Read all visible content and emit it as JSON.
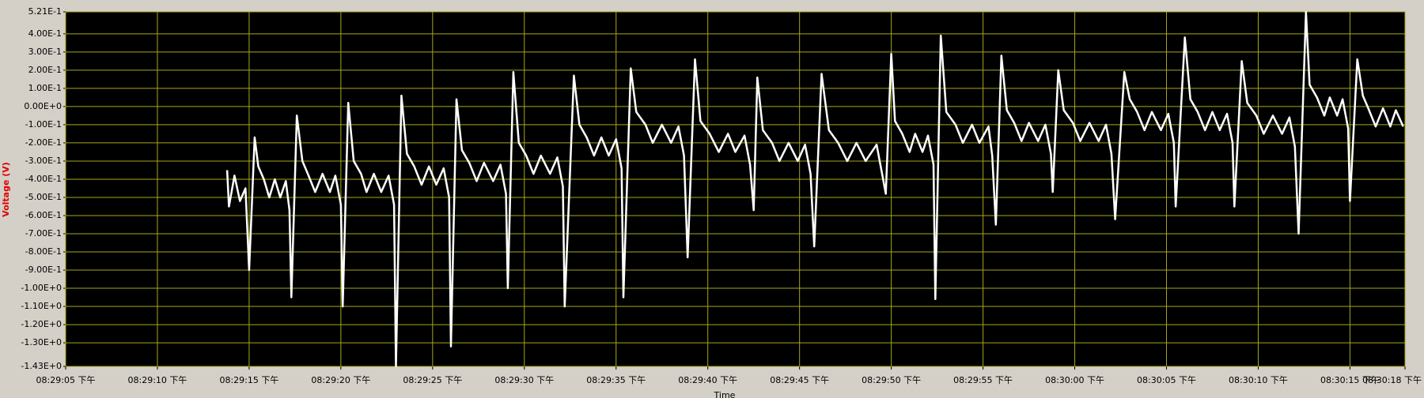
{
  "chart_data": {
    "type": "line",
    "xlabel": "Time",
    "ylabel": "Voltage (V)",
    "xlim": [
      73745,
      73818
    ],
    "xticks": [
      {
        "value": 73745,
        "label": "08:29:05 下午"
      },
      {
        "value": 73750,
        "label": "08:29:10 下午"
      },
      {
        "value": 73755,
        "label": "08:29:15 下午"
      },
      {
        "value": 73760,
        "label": "08:29:20 下午"
      },
      {
        "value": 73765,
        "label": "08:29:25 下午"
      },
      {
        "value": 73770,
        "label": "08:29:30 下午"
      },
      {
        "value": 73775,
        "label": "08:29:35 下午"
      },
      {
        "value": 73780,
        "label": "08:29:40 下午"
      },
      {
        "value": 73785,
        "label": "08:29:45 下午"
      },
      {
        "value": 73790,
        "label": "08:29:50 下午"
      },
      {
        "value": 73795,
        "label": "08:29:55 下午"
      },
      {
        "value": 73800,
        "label": "08:30:00 下午"
      },
      {
        "value": 73805,
        "label": "08:30:05 下午"
      },
      {
        "value": 73810,
        "label": "08:30:10 下午"
      },
      {
        "value": 73815,
        "label": "08:30:15 下午"
      },
      {
        "value": 73818,
        "label": "08:30:18 下午"
      }
    ],
    "ylim": [
      -1.43,
      0.521
    ],
    "yticks": [
      {
        "value": 0.521,
        "label": "5.21E-1"
      },
      {
        "value": 0.4,
        "label": "4.00E-1"
      },
      {
        "value": 0.3,
        "label": "3.00E-1"
      },
      {
        "value": 0.2,
        "label": "2.00E-1"
      },
      {
        "value": 0.1,
        "label": "1.00E-1"
      },
      {
        "value": 0,
        "label": "0.00E+0"
      },
      {
        "value": -0.1,
        "label": "-1.00E-1"
      },
      {
        "value": -0.2,
        "label": "-2.00E-1"
      },
      {
        "value": -0.3,
        "label": "-3.00E-1"
      },
      {
        "value": -0.4,
        "label": "-4.00E-1"
      },
      {
        "value": -0.5,
        "label": "-5.00E-1"
      },
      {
        "value": -0.6,
        "label": "-6.00E-1"
      },
      {
        "value": -0.7,
        "label": "-7.00E-1"
      },
      {
        "value": -0.8,
        "label": "-8.00E-1"
      },
      {
        "value": -0.9,
        "label": "-9.00E-1"
      },
      {
        "value": -1.0,
        "label": "-1.00E+0"
      },
      {
        "value": -1.1,
        "label": "-1.10E+0"
      },
      {
        "value": -1.2,
        "label": "-1.20E+0"
      },
      {
        "value": -1.3,
        "label": "-1.30E+0"
      },
      {
        "value": -1.43,
        "label": "-1.43E+0"
      }
    ],
    "grid": true,
    "grid_color": "#a6a61e",
    "plot_background": "#000000",
    "x": [
      73753.8,
      73753.9,
      73754.2,
      73754.5,
      73754.8,
      73755.0,
      73755.3,
      73755.5,
      73755.8,
      73756.1,
      73756.4,
      73756.7,
      73757.0,
      73757.2,
      73757.3,
      73757.6,
      73757.9,
      73758.2,
      73758.6,
      73759.0,
      73759.4,
      73759.7,
      73760.0,
      73760.1,
      73760.4,
      73760.7,
      73761.1,
      73761.4,
      73761.8,
      73762.2,
      73762.6,
      73762.9,
      73763.0,
      73763.3,
      73763.6,
      73764.0,
      73764.4,
      73764.8,
      73765.2,
      73765.6,
      73765.9,
      73766.0,
      73766.3,
      73766.6,
      73767.0,
      73767.4,
      73767.8,
      73768.3,
      73768.7,
      73769.0,
      73769.1,
      73769.4,
      73769.7,
      73770.1,
      73770.5,
      73770.9,
      73771.4,
      73771.8,
      73772.1,
      73772.2,
      73772.7,
      73773.0,
      73773.4,
      73773.8,
      73774.2,
      73774.6,
      73775.0,
      73775.3,
      73775.4,
      73775.8,
      73776.1,
      73776.6,
      73777.0,
      73777.5,
      73778.0,
      73778.4,
      73778.7,
      73778.9,
      73779.3,
      73779.6,
      73780.1,
      73780.6,
      73781.1,
      73781.5,
      73782.0,
      73782.3,
      73782.5,
      73782.7,
      73783.0,
      73783.5,
      73783.9,
      73784.4,
      73784.9,
      73785.3,
      73785.6,
      73785.8,
      73786.2,
      73786.6,
      73787.1,
      73787.6,
      73788.1,
      73788.6,
      73789.2,
      73789.5,
      73789.7,
      73790.0,
      73790.2,
      73790.6,
      73791.0,
      73791.3,
      73791.7,
      73792.0,
      73792.3,
      73792.4,
      73792.7,
      73793.0,
      73793.5,
      73793.9,
      73794.4,
      73794.8,
      73795.3,
      73795.5,
      73795.7,
      73796.0,
      73796.3,
      73796.7,
      73797.1,
      73797.5,
      73798.0,
      73798.4,
      73798.7,
      73798.8,
      73799.1,
      73799.4,
      73799.9,
      73800.3,
      73800.8,
      73801.3,
      73801.7,
      73802.0,
      73802.2,
      73802.7,
      73803.0,
      73803.4,
      73803.8,
      73804.2,
      73804.7,
      73805.1,
      73805.4,
      73805.5,
      73806.0,
      73806.3,
      73806.7,
      73807.1,
      73807.5,
      73807.9,
      73808.3,
      73808.6,
      73808.7,
      73809.1,
      73809.4,
      73809.9,
      73810.3,
      73810.8,
      73811.3,
      73811.7,
      73812.0,
      73812.2,
      73812.6,
      73812.8,
      73813.2,
      73813.6,
      73813.9,
      73814.3,
      73814.6,
      73814.9,
      73815.0,
      73815.4,
      73815.7,
      73816.0,
      73816.4,
      73816.8,
      73817.2,
      73817.5,
      73817.9
    ],
    "series": [
      {
        "color": "#ffffff",
        "values": [
          -0.35,
          -0.55,
          -0.38,
          -0.52,
          -0.45,
          -0.9,
          -0.17,
          -0.33,
          -0.4,
          -0.5,
          -0.4,
          -0.5,
          -0.41,
          -0.57,
          -1.05,
          -0.05,
          -0.3,
          -0.37,
          -0.47,
          -0.37,
          -0.47,
          -0.38,
          -0.54,
          -1.1,
          0.02,
          -0.3,
          -0.37,
          -0.47,
          -0.37,
          -0.47,
          -0.38,
          -0.54,
          -1.43,
          0.06,
          -0.26,
          -0.33,
          -0.43,
          -0.33,
          -0.43,
          -0.34,
          -0.5,
          -1.32,
          0.04,
          -0.24,
          -0.31,
          -0.41,
          -0.31,
          -0.41,
          -0.32,
          -0.48,
          -1.0,
          0.19,
          -0.2,
          -0.27,
          -0.37,
          -0.27,
          -0.37,
          -0.28,
          -0.44,
          -1.1,
          0.17,
          -0.1,
          -0.17,
          -0.27,
          -0.17,
          -0.27,
          -0.18,
          -0.34,
          -1.05,
          0.21,
          -0.03,
          -0.1,
          -0.2,
          -0.1,
          -0.2,
          -0.11,
          -0.27,
          -0.83,
          0.26,
          -0.08,
          -0.15,
          -0.25,
          -0.15,
          -0.25,
          -0.16,
          -0.32,
          -0.57,
          0.16,
          -0.13,
          -0.2,
          -0.3,
          -0.2,
          -0.3,
          -0.21,
          -0.37,
          -0.77,
          0.18,
          -0.13,
          -0.2,
          -0.3,
          -0.2,
          -0.3,
          -0.21,
          -0.37,
          -0.48,
          0.29,
          -0.08,
          -0.15,
          -0.25,
          -0.15,
          -0.25,
          -0.16,
          -0.32,
          -1.06,
          0.39,
          -0.03,
          -0.1,
          -0.2,
          -0.1,
          -0.2,
          -0.11,
          -0.27,
          -0.65,
          0.28,
          -0.02,
          -0.09,
          -0.19,
          -0.09,
          -0.19,
          -0.1,
          -0.26,
          -0.47,
          0.2,
          -0.02,
          -0.09,
          -0.19,
          -0.09,
          -0.19,
          -0.1,
          -0.26,
          -0.62,
          0.19,
          0.04,
          -0.03,
          -0.13,
          -0.03,
          -0.13,
          -0.04,
          -0.2,
          -0.55,
          0.38,
          0.04,
          -0.03,
          -0.13,
          -0.03,
          -0.13,
          -0.04,
          -0.2,
          -0.55,
          0.25,
          0.02,
          -0.05,
          -0.15,
          -0.05,
          -0.15,
          -0.06,
          -0.22,
          -0.7,
          0.52,
          0.12,
          0.05,
          -0.05,
          0.05,
          -0.05,
          0.04,
          -0.12,
          -0.52,
          0.26,
          0.06,
          -0.01,
          -0.11,
          -0.01,
          -0.11,
          -0.02,
          -0.11
        ]
      }
    ]
  }
}
